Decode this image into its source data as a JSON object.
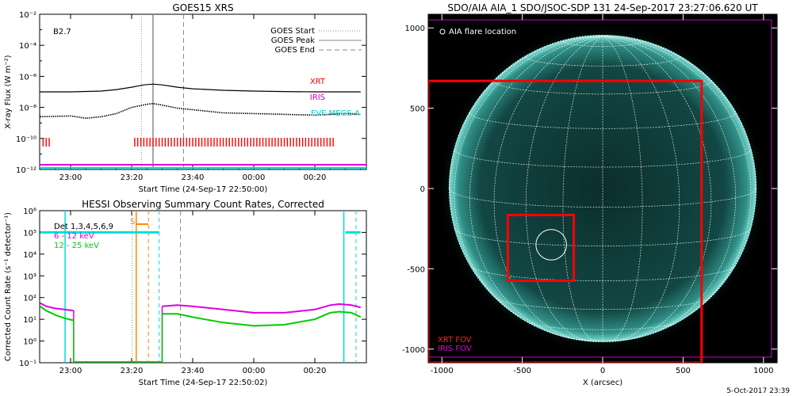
{
  "chart_data": [
    {
      "type": "line",
      "title": "GOES15 XRS",
      "ylabel": "X-ray Flux (W m⁻²)",
      "xlabel": "Start Time (24-Sep-17 22:50:00)",
      "scale": "log",
      "ylim": [
        1e-12,
        0.01
      ],
      "xlim_minutes": [
        22.5,
        155.5
      ],
      "x_ticks": [
        "23:00",
        "23:20",
        "23:40",
        "00:00",
        "00:20"
      ],
      "x_tick_min": [
        0,
        20,
        40,
        60,
        80
      ],
      "y_ticks": [
        "10⁻¹²",
        "10⁻¹⁰",
        "10⁻⁸",
        "10⁻⁶",
        "10⁻⁴",
        "10⁻²"
      ],
      "y_tick_exp": [
        -12,
        -10,
        -8,
        -6,
        -4,
        -2
      ],
      "class_label": "B2.7",
      "legend": [
        "GOES Start",
        "GOES Peak",
        "GOES End"
      ],
      "markers_min": {
        "start": 23.2,
        "peak": 27.0,
        "end": 37.0
      },
      "instrument_labels": [
        {
          "text": "XRT",
          "color": "#ff0000"
        },
        {
          "text": "IRIS",
          "color": "#cc00cc"
        },
        {
          "text": "EVE MEGS-A",
          "color": "#00dddd"
        }
      ],
      "series": [
        {
          "name": "long",
          "color": "#000000",
          "x_min": [
            -10,
            0,
            10,
            15,
            20,
            24,
            27,
            30,
            35,
            40,
            50,
            60,
            70,
            80,
            90,
            95
          ],
          "y_exp": [
            -7.0,
            -7.0,
            -6.95,
            -6.85,
            -6.7,
            -6.55,
            -6.5,
            -6.55,
            -6.7,
            -6.8,
            -6.9,
            -6.95,
            -6.98,
            -7.0,
            -7.0,
            -7.0
          ]
        },
        {
          "name": "short",
          "color": "#000000",
          "x_min": [
            -10,
            0,
            5,
            10,
            15,
            20,
            25,
            27,
            30,
            35,
            40,
            50,
            60,
            70,
            80,
            90,
            95
          ],
          "y_exp": [
            -8.6,
            -8.55,
            -8.7,
            -8.6,
            -8.4,
            -8.0,
            -7.8,
            -7.75,
            -7.85,
            -8.05,
            -8.15,
            -8.35,
            -8.4,
            -8.45,
            -8.5,
            -8.4,
            -8.45
          ]
        }
      ],
      "xrt_ticks_min": [
        -9,
        -8,
        -7,
        21,
        22,
        23,
        24,
        25,
        26,
        27,
        28,
        29,
        30,
        31,
        32,
        33,
        34,
        35,
        36,
        37,
        38,
        39,
        40,
        41,
        42,
        43,
        44,
        45,
        46,
        47,
        48,
        49,
        50,
        51,
        52,
        53,
        54,
        55,
        56,
        57,
        58,
        59,
        60,
        61,
        62,
        63,
        64,
        65,
        66,
        67,
        68,
        69,
        70,
        71,
        72,
        73,
        74,
        75,
        76,
        77,
        78,
        79,
        80,
        81,
        82,
        83,
        84,
        85,
        86
      ]
    },
    {
      "type": "line",
      "title": "HESSI Observing Summary Count Rates, Corrected",
      "ylabel": "Corrected Count Rate (s⁻¹ detector⁻¹)",
      "xlabel": "Start Time (24-Sep-17 22:50:02)",
      "scale": "log",
      "ylim": [
        0.1,
        1000000.0
      ],
      "x_ticks": [
        "23:00",
        "23:20",
        "23:40",
        "00:00",
        "00:20"
      ],
      "x_tick_min": [
        0,
        20,
        40,
        60,
        80
      ],
      "y_ticks": [
        "10⁻¹",
        "10⁰",
        "10¹",
        "10²",
        "10³",
        "10⁴",
        "10⁵",
        "10⁶"
      ],
      "y_tick_exp": [
        -1,
        0,
        1,
        2,
        3,
        4,
        5,
        6
      ],
      "legend": [
        {
          "text": "Det 1,3,4,5,6,9",
          "color": "#000000"
        },
        {
          "text": "6 - 12 keV",
          "color": "#dd00dd"
        },
        {
          "text": "12 - 25 keV",
          "color": "#00cc00"
        }
      ],
      "saa_label": "S",
      "series": [
        {
          "name": "6 - 12 keV",
          "color": "#dd00dd",
          "segments": [
            {
              "x_min": [
                -10,
                -8,
                -5,
                -2,
                1
              ],
              "y_exp": [
                1.75,
                1.6,
                1.5,
                1.45,
                1.4
              ]
            },
            {
              "x_min": [
                30,
                35,
                40,
                50,
                60,
                70,
                80,
                85,
                88,
                92,
                95
              ],
              "y_exp": [
                1.6,
                1.65,
                1.6,
                1.45,
                1.3,
                1.3,
                1.45,
                1.65,
                1.7,
                1.65,
                1.55
              ]
            }
          ]
        },
        {
          "name": "12 - 25 keV",
          "color": "#00cc00",
          "segments": [
            {
              "x_min": [
                -10,
                -8,
                -5,
                -2,
                1
              ],
              "y_exp": [
                1.6,
                1.4,
                1.2,
                1.05,
                0.95
              ]
            },
            {
              "x_min": [
                30,
                35,
                40,
                50,
                60,
                70,
                80,
                85,
                88,
                92,
                95
              ],
              "y_exp": [
                1.25,
                1.25,
                1.1,
                0.85,
                0.7,
                0.75,
                1.0,
                1.3,
                1.35,
                1.3,
                1.1
              ]
            }
          ]
        },
        {
          "name": "flag",
          "color": "#00dddd",
          "segments": [
            {
              "x_min": [
                -10,
                29
              ],
              "y_exp": [
                5,
                5
              ]
            },
            {
              "x_min": [
                90,
                95
              ],
              "y_exp": [
                5,
                5
              ]
            }
          ]
        }
      ]
    },
    {
      "type": "scatter",
      "title": "SDO/AIA AIA_1 SDO/JSOC-SDP 131 24-Sep-2017 23:27:06.620 UT",
      "xlabel": "X (arcsec)",
      "ylabel": "",
      "xlim": [
        -1085,
        1085
      ],
      "ylim": [
        -1085,
        1085
      ],
      "x_ticks": [
        -1000,
        -500,
        0,
        500,
        1000
      ],
      "y_ticks": [
        -1000,
        -500,
        0,
        500,
        1000
      ],
      "legend_label": "AIA flare location",
      "flare_center_arcsec": [
        -320,
        -350
      ],
      "flare_radius_arcsec": 95,
      "solar_radius_arcsec": 955,
      "xrt_fov_label": "XRT FOV",
      "iris_fov_label": "IRIS FOV",
      "xrt_fov_arcsec": {
        "x": [
          -1085,
          615
        ],
        "y": [
          -1085,
          670
        ]
      },
      "iris_fov_arcsec": {
        "x": [
          -1085,
          1050
        ],
        "y": [
          -1050,
          1050
        ]
      },
      "inner_box_arcsec": {
        "x": [
          -590,
          -180
        ],
        "y": [
          -575,
          -165
        ]
      },
      "disk_color": "#0c3a38",
      "limb_color": "#3fb0a6",
      "footer": "5-Oct-2017 23:39"
    }
  ]
}
